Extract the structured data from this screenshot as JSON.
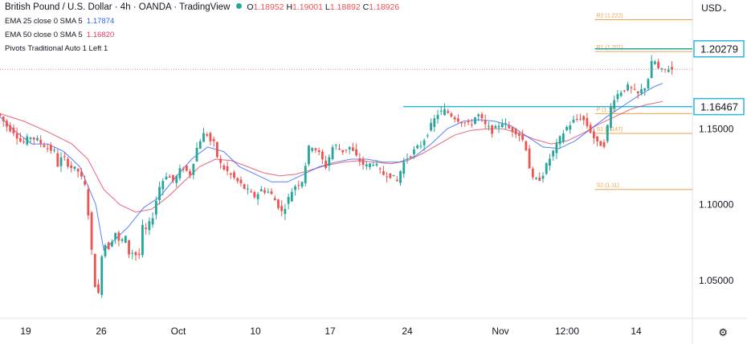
{
  "header": {
    "title": "British Pound / U.S. Dollar · 4h · OANDA · TradingView",
    "o_label": "O",
    "o": "1.18952",
    "h_label": "H",
    "h": "1.19001",
    "l_label": "L",
    "l": "1.18892",
    "c_label": "C",
    "c": "1.18926"
  },
  "indicators": [
    {
      "label": "EMA 25 close 0 SMA 5",
      "value": "1.17874",
      "color": "#2962ff"
    },
    {
      "label": "EMA 50 close 0 SMA 5",
      "value": "1.16820",
      "color": "#e53d5a"
    },
    {
      "label": "Pivots Traditional Auto 1 Left 1",
      "value": ""
    }
  ],
  "currency": "USD",
  "chart_data": {
    "type": "candlestick",
    "symbol": "GBP/USD",
    "timeframe": "4h",
    "ylim": [
      1.025,
      1.235
    ],
    "y_ticks": [
      "1.15000",
      "1.10000",
      "1.05000"
    ],
    "x_ticks": [
      "19",
      "26",
      "Oct",
      "10",
      "17",
      "24",
      "Nov",
      "12:00",
      "14"
    ],
    "price_labels": [
      {
        "text": "1.20279",
        "value": 1.20279
      },
      {
        "text": "1.16467",
        "value": 1.16467
      }
    ],
    "support_line": 1.16467,
    "current_price": 1.18926,
    "pivots": [
      {
        "label": "R2 (1.222)",
        "value": 1.222
      },
      {
        "label": "R1 (1.201)",
        "value": 1.201
      },
      {
        "label": "P (1.16)",
        "value": 1.16
      },
      {
        "label": "S1 (1.147)",
        "value": 1.147
      },
      {
        "label": "S2 (1.11)",
        "value": 1.11
      }
    ],
    "colors": {
      "up": "#26a69a",
      "down": "#ef5350",
      "ema25": "#2962ff",
      "ema50": "#e53d5a",
      "pivot": "#f0a24a",
      "support": "#2fb6d8"
    },
    "ema25": [
      [
        0,
        1.158
      ],
      [
        20,
        1.148
      ],
      [
        40,
        1.14
      ],
      [
        60,
        1.14
      ],
      [
        80,
        1.135
      ],
      [
        100,
        1.125
      ],
      [
        120,
        1.1
      ],
      [
        130,
        1.07
      ],
      [
        140,
        1.075
      ],
      [
        160,
        1.085
      ],
      [
        180,
        1.098
      ],
      [
        200,
        1.105
      ],
      [
        220,
        1.118
      ],
      [
        240,
        1.13
      ],
      [
        260,
        1.138
      ],
      [
        280,
        1.135
      ],
      [
        300,
        1.125
      ],
      [
        320,
        1.12
      ],
      [
        340,
        1.115
      ],
      [
        360,
        1.115
      ],
      [
        380,
        1.12
      ],
      [
        400,
        1.125
      ],
      [
        420,
        1.128
      ],
      [
        440,
        1.13
      ],
      [
        460,
        1.13
      ],
      [
        480,
        1.128
      ],
      [
        500,
        1.128
      ],
      [
        520,
        1.132
      ],
      [
        540,
        1.14
      ],
      [
        560,
        1.15
      ],
      [
        580,
        1.155
      ],
      [
        600,
        1.156
      ],
      [
        620,
        1.155
      ],
      [
        640,
        1.152
      ],
      [
        660,
        1.145
      ],
      [
        680,
        1.138
      ],
      [
        700,
        1.137
      ],
      [
        720,
        1.142
      ],
      [
        740,
        1.15
      ],
      [
        760,
        1.158
      ],
      [
        780,
        1.165
      ],
      [
        800,
        1.172
      ],
      [
        820,
        1.178
      ],
      [
        830,
        1.18
      ]
    ],
    "ema50": [
      [
        0,
        1.16
      ],
      [
        30,
        1.155
      ],
      [
        60,
        1.148
      ],
      [
        90,
        1.14
      ],
      [
        110,
        1.13
      ],
      [
        130,
        1.11
      ],
      [
        150,
        1.1
      ],
      [
        170,
        1.095
      ],
      [
        190,
        1.097
      ],
      [
        210,
        1.105
      ],
      [
        230,
        1.115
      ],
      [
        250,
        1.125
      ],
      [
        270,
        1.13
      ],
      [
        290,
        1.129
      ],
      [
        310,
        1.125
      ],
      [
        330,
        1.121
      ],
      [
        350,
        1.119
      ],
      [
        370,
        1.12
      ],
      [
        390,
        1.123
      ],
      [
        410,
        1.126
      ],
      [
        430,
        1.128
      ],
      [
        450,
        1.129
      ],
      [
        470,
        1.128
      ],
      [
        490,
        1.127
      ],
      [
        510,
        1.129
      ],
      [
        530,
        1.134
      ],
      [
        550,
        1.14
      ],
      [
        570,
        1.146
      ],
      [
        590,
        1.149
      ],
      [
        610,
        1.15
      ],
      [
        630,
        1.15
      ],
      [
        650,
        1.147
      ],
      [
        670,
        1.143
      ],
      [
        690,
        1.14
      ],
      [
        710,
        1.142
      ],
      [
        730,
        1.147
      ],
      [
        750,
        1.153
      ],
      [
        770,
        1.158
      ],
      [
        790,
        1.163
      ],
      [
        810,
        1.166
      ],
      [
        830,
        1.168
      ]
    ],
    "price_path": [
      [
        0,
        1.16
      ],
      [
        10,
        1.152
      ],
      [
        20,
        1.148
      ],
      [
        30,
        1.14
      ],
      [
        40,
        1.145
      ],
      [
        50,
        1.142
      ],
      [
        60,
        1.138
      ],
      [
        70,
        1.135
      ],
      [
        75,
        1.125
      ],
      [
        80,
        1.132
      ],
      [
        90,
        1.125
      ],
      [
        100,
        1.122
      ],
      [
        110,
        1.11
      ],
      [
        115,
        1.08
      ],
      [
        120,
        1.05
      ],
      [
        125,
        1.038
      ],
      [
        130,
        1.07
      ],
      [
        135,
        1.075
      ],
      [
        140,
        1.07
      ],
      [
        145,
        1.085
      ],
      [
        150,
        1.075
      ],
      [
        160,
        1.078
      ],
      [
        165,
        1.064
      ],
      [
        170,
        1.072
      ],
      [
        175,
        1.06
      ],
      [
        180,
        1.085
      ],
      [
        185,
        1.083
      ],
      [
        190,
        1.088
      ],
      [
        195,
        1.095
      ],
      [
        200,
        1.11
      ],
      [
        210,
        1.12
      ],
      [
        220,
        1.115
      ],
      [
        230,
        1.125
      ],
      [
        240,
        1.12
      ],
      [
        250,
        1.14
      ],
      [
        255,
        1.145
      ],
      [
        260,
        1.148
      ],
      [
        265,
        1.142
      ],
      [
        270,
        1.14
      ],
      [
        275,
        1.13
      ],
      [
        280,
        1.125
      ],
      [
        290,
        1.12
      ],
      [
        300,
        1.115
      ],
      [
        310,
        1.11
      ],
      [
        320,
        1.105
      ],
      [
        330,
        1.11
      ],
      [
        340,
        1.108
      ],
      [
        350,
        1.1
      ],
      [
        355,
        1.095
      ],
      [
        360,
        1.1
      ],
      [
        370,
        1.112
      ],
      [
        380,
        1.115
      ],
      [
        390,
        1.14
      ],
      [
        395,
        1.138
      ],
      [
        400,
        1.135
      ],
      [
        410,
        1.125
      ],
      [
        420,
        1.14
      ],
      [
        430,
        1.135
      ],
      [
        440,
        1.138
      ],
      [
        450,
        1.13
      ],
      [
        460,
        1.125
      ],
      [
        470,
        1.128
      ],
      [
        480,
        1.12
      ],
      [
        490,
        1.12
      ],
      [
        500,
        1.115
      ],
      [
        505,
        1.125
      ],
      [
        510,
        1.13
      ],
      [
        520,
        1.135
      ],
      [
        530,
        1.14
      ],
      [
        540,
        1.15
      ],
      [
        550,
        1.16
      ],
      [
        560,
        1.162
      ],
      [
        570,
        1.158
      ],
      [
        580,
        1.155
      ],
      [
        590,
        1.152
      ],
      [
        600,
        1.16
      ],
      [
        610,
        1.152
      ],
      [
        620,
        1.148
      ],
      [
        630,
        1.155
      ],
      [
        640,
        1.15
      ],
      [
        650,
        1.148
      ],
      [
        660,
        1.14
      ],
      [
        665,
        1.125
      ],
      [
        670,
        1.115
      ],
      [
        680,
        1.118
      ],
      [
        690,
        1.13
      ],
      [
        700,
        1.14
      ],
      [
        710,
        1.15
      ],
      [
        720,
        1.155
      ],
      [
        730,
        1.158
      ],
      [
        740,
        1.15
      ],
      [
        750,
        1.14
      ],
      [
        760,
        1.14
      ],
      [
        765,
        1.16
      ],
      [
        770,
        1.17
      ],
      [
        780,
        1.175
      ],
      [
        790,
        1.178
      ],
      [
        800,
        1.172
      ],
      [
        810,
        1.178
      ],
      [
        815,
        1.185
      ],
      [
        820,
        1.198
      ],
      [
        825,
        1.19
      ],
      [
        830,
        1.188
      ],
      [
        840,
        1.19
      ],
      [
        845,
        1.189
      ]
    ]
  }
}
